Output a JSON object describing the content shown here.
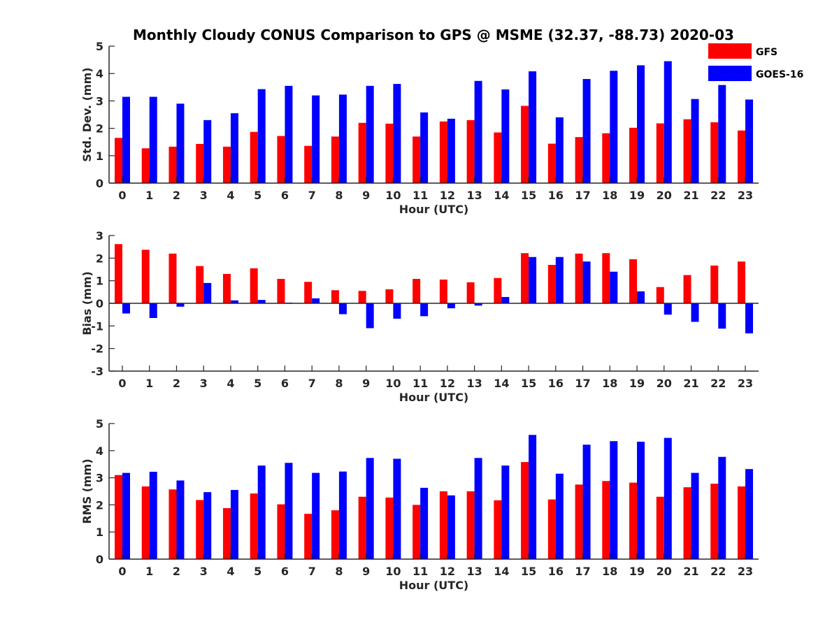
{
  "title": "Monthly Cloudy CONUS Comparison to GPS @ MSME (32.37, -88.73) 2020-03",
  "colors": {
    "GFS": "#ff0000",
    "GOES-16": "#0000ff"
  },
  "legend": {
    "placement": "top-right",
    "entries": [
      "GFS",
      "GOES-16"
    ]
  },
  "chart_data": [
    {
      "type": "bar",
      "xlabel": "Hour (UTC)",
      "ylabel": "Std. Dev. (mm)",
      "ylim": [
        0,
        5
      ],
      "yticks": [
        0,
        1,
        2,
        3,
        4,
        5
      ],
      "categories": [
        "0",
        "1",
        "2",
        "3",
        "4",
        "5",
        "6",
        "7",
        "8",
        "9",
        "10",
        "11",
        "12",
        "13",
        "14",
        "15",
        "16",
        "17",
        "18",
        "19",
        "20",
        "21",
        "22",
        "23"
      ],
      "series": [
        {
          "name": "GFS",
          "values": [
            1.65,
            1.27,
            1.33,
            1.43,
            1.33,
            1.87,
            1.72,
            1.36,
            1.7,
            2.2,
            2.17,
            1.7,
            2.25,
            2.3,
            1.85,
            2.82,
            1.44,
            1.68,
            1.82,
            2.02,
            2.18,
            2.33,
            2.22,
            1.92
          ]
        },
        {
          "name": "GOES-16",
          "values": [
            3.15,
            3.15,
            2.9,
            2.3,
            2.55,
            3.43,
            3.55,
            3.2,
            3.23,
            3.55,
            3.62,
            2.58,
            2.35,
            3.73,
            3.42,
            4.08,
            2.4,
            3.8,
            4.1,
            4.3,
            4.45,
            3.07,
            3.58,
            3.05
          ]
        }
      ]
    },
    {
      "type": "bar",
      "xlabel": "Hour (UTC)",
      "ylabel": "Bias (mm)",
      "ylim": [
        -3,
        3
      ],
      "yticks": [
        -3,
        -2,
        -1,
        0,
        1,
        2,
        3
      ],
      "categories": [
        "0",
        "1",
        "2",
        "3",
        "4",
        "5",
        "6",
        "7",
        "8",
        "9",
        "10",
        "11",
        "12",
        "13",
        "14",
        "15",
        "16",
        "17",
        "18",
        "19",
        "20",
        "21",
        "22",
        "23"
      ],
      "series": [
        {
          "name": "GFS",
          "values": [
            2.62,
            2.37,
            2.2,
            1.65,
            1.3,
            1.55,
            1.08,
            0.95,
            0.58,
            0.55,
            0.62,
            1.08,
            1.05,
            0.93,
            1.12,
            2.22,
            1.7,
            2.2,
            2.22,
            1.95,
            0.72,
            1.25,
            1.67,
            1.85
          ]
        },
        {
          "name": "GOES-16",
          "values": [
            -0.45,
            -0.65,
            -0.15,
            0.9,
            0.13,
            0.15,
            0.03,
            0.22,
            -0.48,
            -1.1,
            -0.68,
            -0.57,
            -0.22,
            -0.1,
            0.28,
            2.05,
            2.05,
            1.85,
            1.4,
            0.53,
            -0.5,
            -0.82,
            -1.12,
            -1.33
          ]
        }
      ]
    },
    {
      "type": "bar",
      "xlabel": "Hour (UTC)",
      "ylabel": "RMS (mm)",
      "ylim": [
        0,
        5
      ],
      "yticks": [
        0,
        1,
        2,
        3,
        4,
        5
      ],
      "categories": [
        "0",
        "1",
        "2",
        "3",
        "4",
        "5",
        "6",
        "7",
        "8",
        "9",
        "10",
        "11",
        "12",
        "13",
        "14",
        "15",
        "16",
        "17",
        "18",
        "19",
        "20",
        "21",
        "22",
        "23"
      ],
      "series": [
        {
          "name": "GFS",
          "values": [
            3.1,
            2.68,
            2.57,
            2.18,
            1.88,
            2.42,
            2.02,
            1.67,
            1.8,
            2.3,
            2.27,
            2.0,
            2.5,
            2.5,
            2.17,
            3.58,
            2.2,
            2.75,
            2.88,
            2.82,
            2.3,
            2.65,
            2.78,
            2.68
          ]
        },
        {
          "name": "GOES-16",
          "values": [
            3.18,
            3.22,
            2.9,
            2.47,
            2.55,
            3.45,
            3.55,
            3.18,
            3.23,
            3.73,
            3.7,
            2.63,
            2.35,
            3.73,
            3.45,
            4.58,
            3.15,
            4.22,
            4.35,
            4.33,
            4.47,
            3.18,
            3.77,
            3.32
          ]
        }
      ]
    }
  ]
}
